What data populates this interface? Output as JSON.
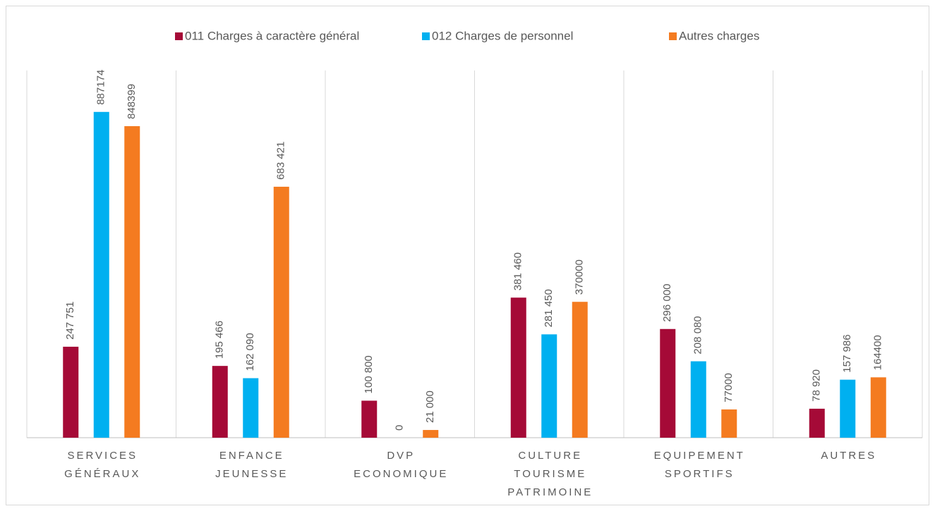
{
  "chart_data": {
    "type": "bar",
    "categories": [
      [
        "SERVICES",
        "GÉNÉRAUX"
      ],
      [
        "ENFANCE",
        "JEUNESSE"
      ],
      [
        "DVP",
        "ECONOMIQUE"
      ],
      [
        "CULTURE",
        "TOURISME",
        "PATRIMOINE"
      ],
      [
        "EQUIPEMENT",
        "SPORTIFS"
      ],
      [
        "AUTRES"
      ]
    ],
    "series": [
      {
        "name": "011 Charges à caractère général",
        "color": "#a50a37",
        "values": [
          247751,
          195466,
          100800,
          381460,
          296000,
          78920
        ],
        "value_labels": [
          "247 751",
          "195 466",
          "100 800",
          "381 460",
          "296 000",
          "78 920"
        ]
      },
      {
        "name": "012 Charges de personnel",
        "color": "#00b0f0",
        "values": [
          887174,
          162090,
          0,
          281450,
          208080,
          157986
        ],
        "value_labels": [
          "887174",
          "162 090",
          "0",
          "281 450",
          "208 080",
          "157 986"
        ]
      },
      {
        "name": "Autres charges",
        "color": "#f47b20",
        "values": [
          848399,
          683421,
          21000,
          370000,
          77000,
          164400
        ],
        "value_labels": [
          "848399",
          "683 421",
          "21 000",
          "370000",
          "77000",
          "164400"
        ]
      }
    ],
    "ylim": [
      0,
      1000000
    ],
    "legend": "top"
  }
}
